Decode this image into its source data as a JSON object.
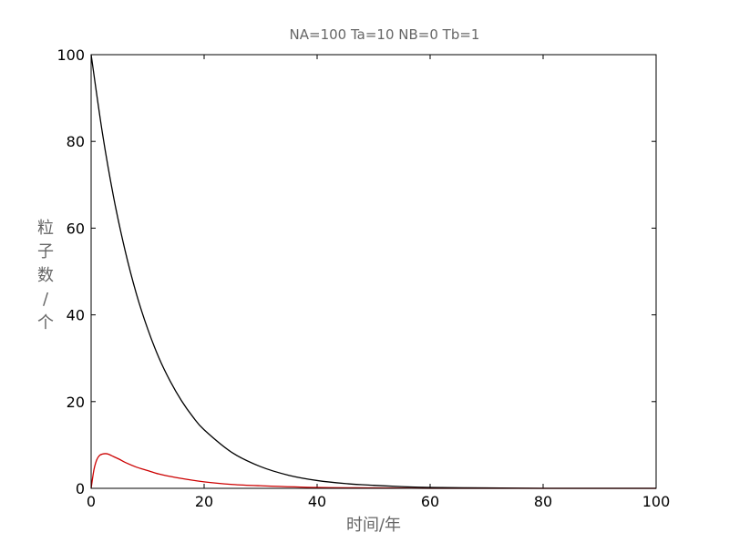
{
  "chart_data": {
    "type": "line",
    "title": "NA=100 Ta=10 NB=0 Tb=1",
    "xlabel": "时间/年",
    "ylabel": [
      "粒",
      "子",
      "数",
      "/",
      "个"
    ],
    "xlim": [
      0,
      100
    ],
    "ylim": [
      0,
      100
    ],
    "xticks": [
      "0",
      "20",
      "40",
      "60",
      "80",
      "100"
    ],
    "yticks": [
      "0",
      "20",
      "40",
      "60",
      "80",
      "100"
    ],
    "grid": false,
    "series": [
      {
        "color": "#000000",
        "x": [
          0,
          2,
          4,
          6,
          8,
          10,
          12,
          14,
          16,
          18,
          20,
          25,
          30,
          35,
          40,
          45,
          50,
          55,
          60,
          70,
          80,
          90,
          100
        ],
        "y": [
          100,
          81.9,
          67.0,
          54.9,
          44.9,
          36.8,
          30.1,
          24.7,
          20.2,
          16.5,
          13.5,
          8.2,
          5.0,
          3.0,
          1.8,
          1.1,
          0.7,
          0.4,
          0.2,
          0.1,
          0.0,
          0.0,
          0.0
        ]
      },
      {
        "color": "#cc0000",
        "x": [
          0,
          0.5,
          1,
          1.5,
          2,
          2.5,
          3,
          4,
          5,
          6,
          8,
          10,
          12,
          15,
          20,
          25,
          30,
          40,
          50,
          60,
          80,
          100
        ],
        "y": [
          0,
          4.3,
          6.6,
          7.6,
          7.9,
          8.0,
          7.9,
          7.3,
          6.7,
          6.0,
          4.9,
          4.1,
          3.3,
          2.5,
          1.5,
          0.9,
          0.6,
          0.2,
          0.1,
          0.0,
          0.0,
          0.0
        ]
      }
    ]
  }
}
